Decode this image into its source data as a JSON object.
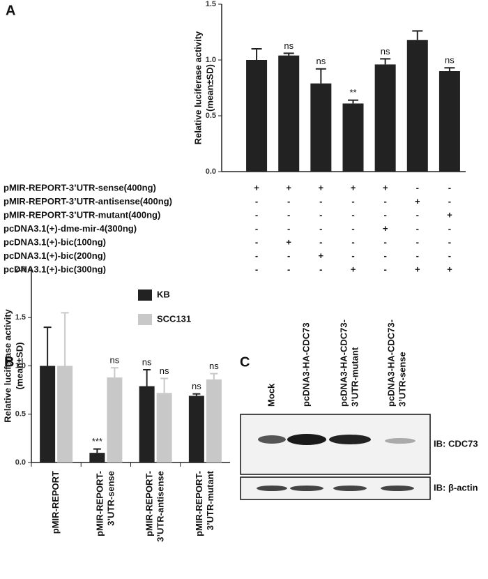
{
  "chart_data": [
    {
      "type": "bar",
      "panel": "A",
      "ylabel": [
        "Relative luciferase activity",
        "(mean±SD)"
      ],
      "categories": [
        null,
        null,
        null,
        null,
        null,
        null,
        null
      ],
      "values": [
        1.0,
        1.04,
        0.79,
        0.61,
        0.96,
        1.18,
        0.9
      ],
      "errors": [
        0.1,
        0.02,
        0.13,
        0.03,
        0.05,
        0.08,
        0.03
      ],
      "annotations": [
        null,
        "ns",
        "ns",
        "**",
        "ns",
        null,
        "ns"
      ],
      "color": "#222222",
      "ylim": [
        0,
        1.5
      ],
      "yticks": [
        {
          "value": 0,
          "label": "0.0"
        },
        0.5,
        {
          "value": 1,
          "label": "1.0"
        },
        1.5
      ],
      "conditions": [
        {
          "label": "pMIR-REPORT-3’UTR-sense(400ng)",
          "signs": [
            "+",
            "+",
            "+",
            "+",
            "+",
            "-",
            "-"
          ]
        },
        {
          "label": "pMIR-REPORT-3’UTR-antisense(400ng)",
          "signs": [
            "-",
            "-",
            "-",
            "-",
            "-",
            "+",
            "-"
          ]
        },
        {
          "label": "pMIR-REPORT-3’UTR-mutant(400ng)",
          "signs": [
            "-",
            "-",
            "-",
            "-",
            "-",
            "-",
            "+"
          ]
        },
        {
          "label": "pcDNA3.1(+)-dme-mir-4(300ng)",
          "signs": [
            "-",
            "-",
            "-",
            "-",
            "+",
            "-",
            "-"
          ]
        },
        {
          "label": "pcDNA3.1(+)-bic(100ng)",
          "signs": [
            "-",
            "+",
            "-",
            "-",
            "-",
            "-",
            "-"
          ]
        },
        {
          "label": "pcDNA3.1(+)-bic(200ng)",
          "signs": [
            "-",
            "-",
            "+",
            "-",
            "-",
            "-",
            "-"
          ]
        },
        {
          "label": "pcDNA3.1(+)-bic(300ng)",
          "signs": [
            "-",
            "-",
            "-",
            "+",
            "-",
            "+",
            "+"
          ]
        }
      ]
    },
    {
      "type": "grouped-bar",
      "panel": "B",
      "ylabel": [
        "Relative luciferase activity",
        "(mean±SD)"
      ],
      "categories": [
        [
          "pMIR-REPORT"
        ],
        [
          "pMIR-REPORT-",
          "3’UTR-sense"
        ],
        [
          "pMIR-REPORT-",
          "3’UTR-antisense"
        ],
        [
          "pMIR-REPORT-",
          "3’UTR-mutant"
        ]
      ],
      "series": [
        {
          "name": "KB",
          "color": "#222222",
          "values": [
            1.0,
            0.1,
            0.79,
            0.69
          ],
          "errors": [
            0.4,
            0.04,
            0.17,
            0.02
          ],
          "annotations": [
            null,
            "***",
            "ns",
            "ns"
          ]
        },
        {
          "name": "SCC131",
          "color": "#c8c8c8",
          "values": [
            1.0,
            0.88,
            0.72,
            0.86
          ],
          "errors": [
            0.55,
            0.1,
            0.15,
            0.06
          ],
          "annotations": [
            null,
            "ns",
            "ns",
            "ns"
          ]
        }
      ],
      "ylim": [
        0,
        2
      ],
      "yticks": [
        {
          "value": 0,
          "label": "0.0"
        },
        0.5,
        {
          "value": 1,
          "label": "1.0"
        },
        1.5,
        {
          "value": 2,
          "label": "2.0"
        }
      ]
    }
  ],
  "panel_c": {
    "panel": "C",
    "lanes": [
      "Mock",
      "pcDNA3-HA-CDC73",
      [
        "pcDNA3-HA-CDC73-",
        "3’UTR-mutant"
      ],
      [
        "pcDNA3-HA-CDC73-",
        "3’UTR-sense"
      ]
    ],
    "blots": [
      "IB: CDC73",
      "IB: β-actin"
    ]
  }
}
